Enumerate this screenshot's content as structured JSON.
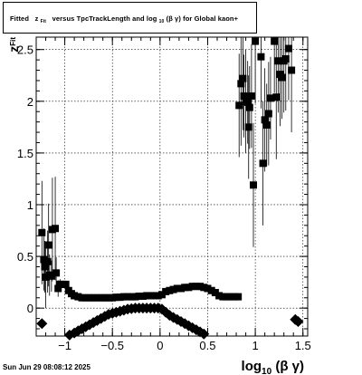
{
  "title": {
    "t1": "Fitted",
    "t2": "z",
    "t3": "Fit",
    "t4": "versus TpcTrackLength and log",
    "t5": "10",
    "t6": "(β  γ) for Global kaon+"
  },
  "timestamp": "Sun Jun 29 08:08:12 2025",
  "chart_data": {
    "type": "scatter",
    "title": "Fitted z_Fit versus TpcTrackLength and log10(β γ) for Global kaon+",
    "xlabel": "log10(β γ)",
    "ylabel": "z_Fit",
    "xlabel_parts": {
      "main": "log",
      "sub": "10",
      "rest": "(β γ)"
    },
    "ylabel_parts": {
      "main": "z",
      "sub": "Fit"
    },
    "xlim": [
      -1.3,
      1.55
    ],
    "ylim": [
      -0.27,
      2.62
    ],
    "grid": true,
    "x_ticks": [
      {
        "value": -1,
        "label": "−1"
      },
      {
        "value": -0.5,
        "label": "−0.5"
      },
      {
        "value": 0,
        "label": "0"
      },
      {
        "value": 0.5,
        "label": "0.5"
      },
      {
        "value": 1,
        "label": "1"
      },
      {
        "value": 1.5,
        "label": "1.5"
      }
    ],
    "y_ticks": [
      {
        "value": 0,
        "label": "0"
      },
      {
        "value": 0.5,
        "label": "0.5"
      },
      {
        "value": 1,
        "label": "1"
      },
      {
        "value": 1.5,
        "label": "1.5"
      },
      {
        "value": 2,
        "label": "2"
      },
      {
        "value": 2.5,
        "label": "2.5"
      }
    ],
    "series": [
      {
        "marker": "square",
        "points": [
          [
            -1.24,
            0.73,
            0.5
          ],
          [
            -1.22,
            0.47,
            0.3
          ],
          [
            -1.21,
            0.4,
            0.25
          ],
          [
            -1.2,
            0.3,
            0.3
          ],
          [
            -1.18,
            0.45,
            0.3
          ],
          [
            -1.17,
            0.61,
            0.4
          ],
          [
            -1.16,
            0.32,
            0.2
          ],
          [
            -1.14,
            0.31,
            0.15
          ],
          [
            -1.13,
            0.76,
            0.5
          ],
          [
            -1.1,
            0.77,
            0.5
          ],
          [
            -1.09,
            0.34,
            0.15
          ],
          [
            -1.07,
            0.19,
            0.08
          ],
          [
            -1.05,
            0.23,
            0.05
          ],
          [
            -1.02,
            0.23,
            0.03
          ],
          [
            -0.99,
            0.23,
            0.03
          ],
          [
            -0.96,
            0.17,
            0.02
          ],
          [
            -0.93,
            0.14,
            0.02
          ],
          [
            -0.9,
            0.12,
            0.02
          ],
          [
            -0.86,
            0.11,
            0.02
          ],
          [
            -0.82,
            0.1,
            0.02
          ],
          [
            -0.78,
            0.1,
            0.02
          ],
          [
            -0.74,
            0.1,
            0.02
          ],
          [
            -0.7,
            0.1,
            0.02
          ],
          [
            -0.66,
            0.1,
            0.02
          ],
          [
            -0.62,
            0.1,
            0.02
          ],
          [
            -0.58,
            0.1,
            0.02
          ],
          [
            -0.54,
            0.1,
            0.02
          ],
          [
            -0.5,
            0.1,
            0.02
          ],
          [
            -0.46,
            0.105,
            0.02
          ],
          [
            -0.42,
            0.105,
            0.02
          ],
          [
            -0.38,
            0.11,
            0.02
          ],
          [
            -0.34,
            0.11,
            0.02
          ],
          [
            -0.3,
            0.11,
            0.02
          ],
          [
            -0.26,
            0.11,
            0.02
          ],
          [
            -0.22,
            0.115,
            0.02
          ],
          [
            -0.18,
            0.115,
            0.02
          ],
          [
            -0.14,
            0.12,
            0.02
          ],
          [
            -0.1,
            0.12,
            0.02
          ],
          [
            -0.06,
            0.12,
            0.02
          ],
          [
            -0.02,
            0.12,
            0.02
          ],
          [
            0.02,
            0.13,
            0.02
          ],
          [
            0.06,
            0.16,
            0.02
          ],
          [
            0.1,
            0.17,
            0.02
          ],
          [
            0.14,
            0.18,
            0.02
          ],
          [
            0.18,
            0.19,
            0.02
          ],
          [
            0.22,
            0.19,
            0.02
          ],
          [
            0.26,
            0.2,
            0.02
          ],
          [
            0.3,
            0.2,
            0.02
          ],
          [
            0.34,
            0.21,
            0.02
          ],
          [
            0.38,
            0.21,
            0.02
          ],
          [
            0.42,
            0.21,
            0.02
          ],
          [
            0.46,
            0.2,
            0.02
          ],
          [
            0.5,
            0.19,
            0.02
          ],
          [
            0.54,
            0.17,
            0.02
          ],
          [
            0.58,
            0.15,
            0.02
          ],
          [
            0.62,
            0.12,
            0.02
          ],
          [
            0.66,
            0.11,
            0.02
          ],
          [
            0.7,
            0.11,
            0.02
          ],
          [
            0.74,
            0.11,
            0.02
          ],
          [
            0.78,
            0.11,
            0.02
          ],
          [
            0.82,
            0.11,
            0.02
          ],
          [
            0.83,
            1.96,
            0.5
          ],
          [
            0.85,
            2.17,
            0.6
          ],
          [
            0.87,
            2.22,
            0.5
          ],
          [
            0.88,
            2.05,
            0.4
          ],
          [
            0.9,
            2.0,
            0.5
          ],
          [
            0.92,
            1.99,
            0.4
          ],
          [
            0.93,
            1.75,
            0.5
          ],
          [
            0.94,
            1.94,
            0.4
          ],
          [
            0.96,
            2.05,
            0.5
          ],
          [
            0.98,
            1.19,
            0.6
          ],
          [
            1.0,
            2.58,
            0.6
          ],
          [
            1.06,
            2.43,
            0.5
          ],
          [
            1.08,
            1.4,
            0.6
          ],
          [
            1.1,
            1.82,
            0.5
          ],
          [
            1.12,
            1.77,
            0.4
          ],
          [
            1.14,
            1.88,
            0.5
          ],
          [
            1.16,
            2.03,
            0.4
          ],
          [
            1.2,
            2.58,
            0.5
          ],
          [
            1.22,
            2.04,
            0.6
          ],
          [
            1.24,
            2.39,
            0.5
          ],
          [
            1.26,
            2.26,
            0.5
          ],
          [
            1.28,
            2.23,
            0.4
          ],
          [
            1.3,
            2.39,
            0.5
          ],
          [
            1.32,
            2.41,
            0.5
          ],
          [
            1.35,
            2.51,
            0.5
          ],
          [
            1.38,
            2.3,
            0.6
          ]
        ]
      },
      {
        "marker": "diamond",
        "points": [
          [
            -1.24,
            -0.15
          ],
          [
            -0.95,
            -0.26
          ],
          [
            -0.9,
            -0.24
          ],
          [
            -0.86,
            -0.22
          ],
          [
            -0.82,
            -0.2
          ],
          [
            -0.78,
            -0.18
          ],
          [
            -0.74,
            -0.16
          ],
          [
            -0.7,
            -0.14
          ],
          [
            -0.66,
            -0.12
          ],
          [
            -0.62,
            -0.1
          ],
          [
            -0.58,
            -0.08
          ],
          [
            -0.54,
            -0.06
          ],
          [
            -0.5,
            -0.05
          ],
          [
            -0.46,
            -0.04
          ],
          [
            -0.42,
            -0.03
          ],
          [
            -0.38,
            -0.02
          ],
          [
            -0.34,
            -0.01
          ],
          [
            -0.3,
            -0.005
          ],
          [
            -0.26,
            0.0
          ],
          [
            -0.22,
            0.0
          ],
          [
            -0.18,
            0.0
          ],
          [
            -0.14,
            0.0
          ],
          [
            -0.1,
            0.0
          ],
          [
            -0.06,
            0.0
          ],
          [
            -0.02,
            0.0
          ],
          [
            0.02,
            -0.01
          ],
          [
            0.06,
            -0.04
          ],
          [
            0.1,
            -0.07
          ],
          [
            0.14,
            -0.09
          ],
          [
            0.18,
            -0.11
          ],
          [
            0.22,
            -0.13
          ],
          [
            0.26,
            -0.15
          ],
          [
            0.3,
            -0.17
          ],
          [
            0.34,
            -0.19
          ],
          [
            0.38,
            -0.21
          ],
          [
            0.42,
            -0.23
          ],
          [
            0.46,
            -0.25
          ],
          [
            1.42,
            -0.11
          ],
          [
            1.45,
            -0.13
          ]
        ]
      }
    ]
  }
}
